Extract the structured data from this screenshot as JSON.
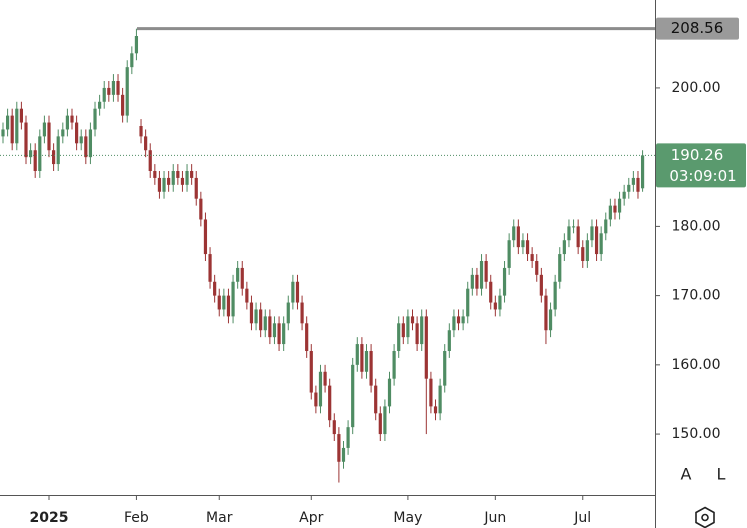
{
  "chart_data": {
    "type": "candlestick",
    "open": [
      193,
      194,
      196,
      192,
      197,
      195,
      190,
      191,
      188,
      193,
      195,
      191,
      189,
      193,
      194,
      196,
      195,
      192,
      193,
      190,
      194,
      197,
      198,
      200,
      199,
      201,
      199,
      196,
      203,
      205,
      194.5,
      193,
      191,
      188,
      187,
      185,
      187,
      186,
      188,
      187,
      186,
      188,
      187,
      184,
      181,
      176,
      172,
      170,
      168,
      170,
      167,
      172,
      174,
      171,
      169,
      166,
      168,
      165,
      167,
      164,
      166,
      163,
      166,
      169,
      172,
      169,
      166,
      162,
      156,
      154,
      159,
      157,
      152,
      150,
      146,
      148,
      151,
      160,
      163,
      159,
      162,
      157,
      153,
      150,
      154,
      158,
      162,
      166,
      164,
      167,
      166,
      163,
      167,
      158,
      154,
      153,
      157,
      162,
      165,
      167,
      166,
      167,
      171,
      173,
      171,
      175,
      172,
      169,
      168,
      170,
      174,
      178,
      180,
      177,
      178,
      176,
      175,
      173,
      170,
      165,
      168,
      172,
      176,
      178,
      180,
      180,
      177,
      175,
      178,
      180,
      176,
      179,
      181,
      183,
      182,
      184,
      185,
      186,
      187,
      185.5
    ],
    "high": [
      195,
      197,
      197,
      198,
      198,
      196,
      192,
      192,
      194,
      196,
      196,
      192,
      194,
      195,
      197,
      197,
      196,
      194,
      194,
      195,
      198,
      199,
      201,
      201,
      202,
      202,
      200,
      204,
      206,
      208.56,
      195.5,
      194,
      192,
      189,
      188,
      188,
      188,
      189,
      189,
      188,
      189,
      189,
      188,
      185,
      182,
      177,
      173,
      171,
      171,
      171,
      173,
      175,
      175,
      172,
      170,
      169,
      169,
      168,
      168,
      167,
      167,
      167,
      170,
      173,
      173,
      170,
      167,
      163,
      157,
      160,
      160,
      158,
      153,
      151,
      149,
      152,
      161,
      164,
      164,
      163,
      163,
      158,
      154,
      155,
      159,
      163,
      167,
      167,
      168,
      168,
      167,
      168,
      168,
      159,
      155,
      158,
      163,
      166,
      168,
      168,
      168,
      172,
      174,
      174,
      176,
      176,
      173,
      170,
      171,
      175,
      179,
      181,
      181,
      179,
      179,
      177,
      176,
      174,
      171,
      169,
      173,
      177,
      179,
      181,
      181,
      181,
      178,
      179,
      181,
      181,
      180,
      182,
      184,
      184,
      185,
      186,
      187,
      188,
      188,
      191
    ],
    "low": [
      192,
      193,
      191,
      191,
      194,
      189,
      189,
      187,
      187,
      192,
      190,
      188,
      188,
      192,
      193,
      194,
      191,
      191,
      189,
      189,
      193,
      196,
      197,
      198,
      198,
      198,
      195,
      195,
      202,
      204,
      192,
      190,
      187,
      186,
      184,
      184,
      185,
      185,
      186,
      185,
      185,
      186,
      183,
      180,
      175,
      171,
      169,
      167,
      167,
      166,
      166,
      171,
      170,
      168,
      165,
      165,
      164,
      164,
      163,
      163,
      162,
      162,
      165,
      168,
      168,
      165,
      161,
      155,
      153,
      153,
      156,
      151,
      149,
      143,
      145,
      147,
      150,
      159,
      158,
      158,
      156,
      152,
      149,
      149,
      153,
      157,
      161,
      163,
      163,
      165,
      162,
      162,
      150,
      153,
      152,
      152,
      156,
      161,
      164,
      165,
      165,
      166,
      170,
      170,
      170,
      171,
      168,
      167,
      167,
      169,
      173,
      177,
      176,
      176,
      175,
      174,
      172,
      169,
      163,
      164,
      167,
      171,
      175,
      177,
      179,
      176,
      174,
      174,
      177,
      175,
      175,
      178,
      180,
      181,
      181,
      183,
      184,
      185,
      184,
      185
    ],
    "close": [
      194,
      196,
      192,
      197,
      195,
      190,
      191,
      188,
      193,
      195,
      191,
      189,
      193,
      194,
      196,
      195,
      192,
      193,
      190,
      194,
      197,
      198,
      200,
      199,
      201,
      199,
      196,
      203,
      205,
      207.5,
      193,
      191,
      188,
      187,
      185,
      187,
      186,
      188,
      187,
      186,
      188,
      187,
      184,
      181,
      176,
      172,
      170,
      168,
      170,
      167,
      172,
      174,
      171,
      169,
      166,
      168,
      165,
      167,
      164,
      166,
      163,
      166,
      169,
      172,
      169,
      166,
      162,
      156,
      154,
      159,
      157,
      152,
      150,
      146,
      148,
      151,
      160,
      163,
      159,
      162,
      157,
      153,
      150,
      154,
      158,
      162,
      166,
      164,
      167,
      166,
      163,
      167,
      158,
      154,
      153,
      157,
      162,
      165,
      167,
      166,
      167,
      171,
      173,
      171,
      175,
      172,
      169,
      168,
      170,
      174,
      178,
      180,
      177,
      178,
      176,
      175,
      173,
      170,
      165,
      168,
      172,
      176,
      178,
      180,
      180,
      177,
      175,
      178,
      180,
      176,
      179,
      181,
      183,
      182,
      184,
      185,
      186,
      187,
      185,
      190.26
    ],
    "up_color": "#4f8c63",
    "down_color": "#9c3434",
    "xlim": [
      -0.65,
      141.7
    ],
    "xticks": [
      {
        "value": 10,
        "label": "2025"
      },
      {
        "value": 29,
        "label": "Feb"
      },
      {
        "value": 47,
        "label": "Mar"
      },
      {
        "value": 67,
        "label": "Apr"
      },
      {
        "value": 88,
        "label": "May"
      },
      {
        "value": 107,
        "label": "Jun"
      },
      {
        "value": 126,
        "label": "Jul"
      }
    ],
    "ylim": [
      141.2,
      212.7
    ],
    "yticks": [
      {
        "value": 150,
        "label": "150.00"
      },
      {
        "value": 160,
        "label": "160.00"
      },
      {
        "value": 170,
        "label": "170.00"
      },
      {
        "value": 180,
        "label": "180.00"
      },
      {
        "value": 200,
        "label": "200.00"
      }
    ],
    "high_marker": 208.56,
    "last_price": 190.26,
    "countdown": "03:09:01",
    "buttons": [
      "A",
      "L"
    ]
  }
}
